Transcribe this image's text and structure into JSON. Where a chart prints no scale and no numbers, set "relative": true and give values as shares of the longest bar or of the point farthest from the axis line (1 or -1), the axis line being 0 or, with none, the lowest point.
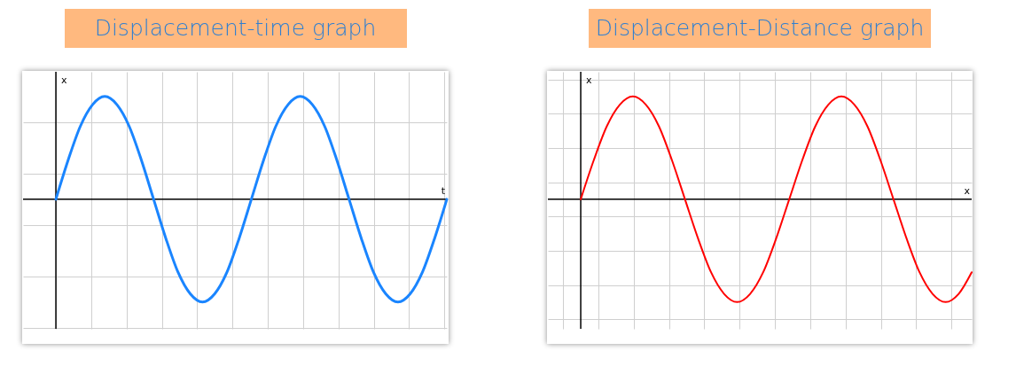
{
  "chart_data": [
    {
      "type": "line",
      "title": "Displacement-time graph",
      "xlabel": "t",
      "ylabel": "x",
      "relative": true,
      "grid": true,
      "tick_labels": false,
      "categories": [
        null,
        null,
        null,
        null,
        null,
        null,
        null,
        null,
        null,
        null,
        null,
        null,
        null,
        null,
        null,
        null,
        null,
        null,
        null,
        null,
        null,
        null,
        null,
        null,
        null,
        null,
        null,
        null,
        null,
        null,
        null,
        null,
        null
      ],
      "series": [
        {
          "color": "#1a85ff",
          "values": [
            0,
            0.38,
            0.71,
            0.92,
            1,
            0.92,
            0.71,
            0.38,
            0,
            -0.38,
            -0.71,
            -0.92,
            -1,
            -0.92,
            -0.71,
            -0.38,
            0,
            0.38,
            0.71,
            0.92,
            1,
            0.92,
            0.71,
            0.38,
            0,
            -0.38,
            -0.71,
            -0.92,
            -1,
            -0.92,
            -0.71,
            -0.38,
            0
          ]
        }
      ]
    },
    {
      "type": "line",
      "title": "Displacement-Distance graph",
      "xlabel": "x",
      "ylabel": "x",
      "relative": true,
      "grid": true,
      "tick_labels": false,
      "categories": [
        null,
        null,
        null,
        null,
        null,
        null,
        null,
        null,
        null,
        null,
        null,
        null,
        null,
        null,
        null,
        null,
        null,
        null,
        null,
        null,
        null,
        null,
        null,
        null,
        null,
        null,
        null,
        null,
        null,
        null,
        null
      ],
      "series": [
        {
          "color": "#ff0000",
          "values": [
            0,
            0.38,
            0.71,
            0.92,
            1,
            0.92,
            0.71,
            0.38,
            0,
            -0.38,
            -0.71,
            -0.92,
            -1,
            -0.92,
            -0.71,
            -0.38,
            0,
            0.38,
            0.71,
            0.92,
            1,
            0.92,
            0.71,
            0.38,
            0,
            -0.38,
            -0.71,
            -0.92,
            -1,
            -0.92,
            -0.71
          ]
        }
      ]
    }
  ]
}
